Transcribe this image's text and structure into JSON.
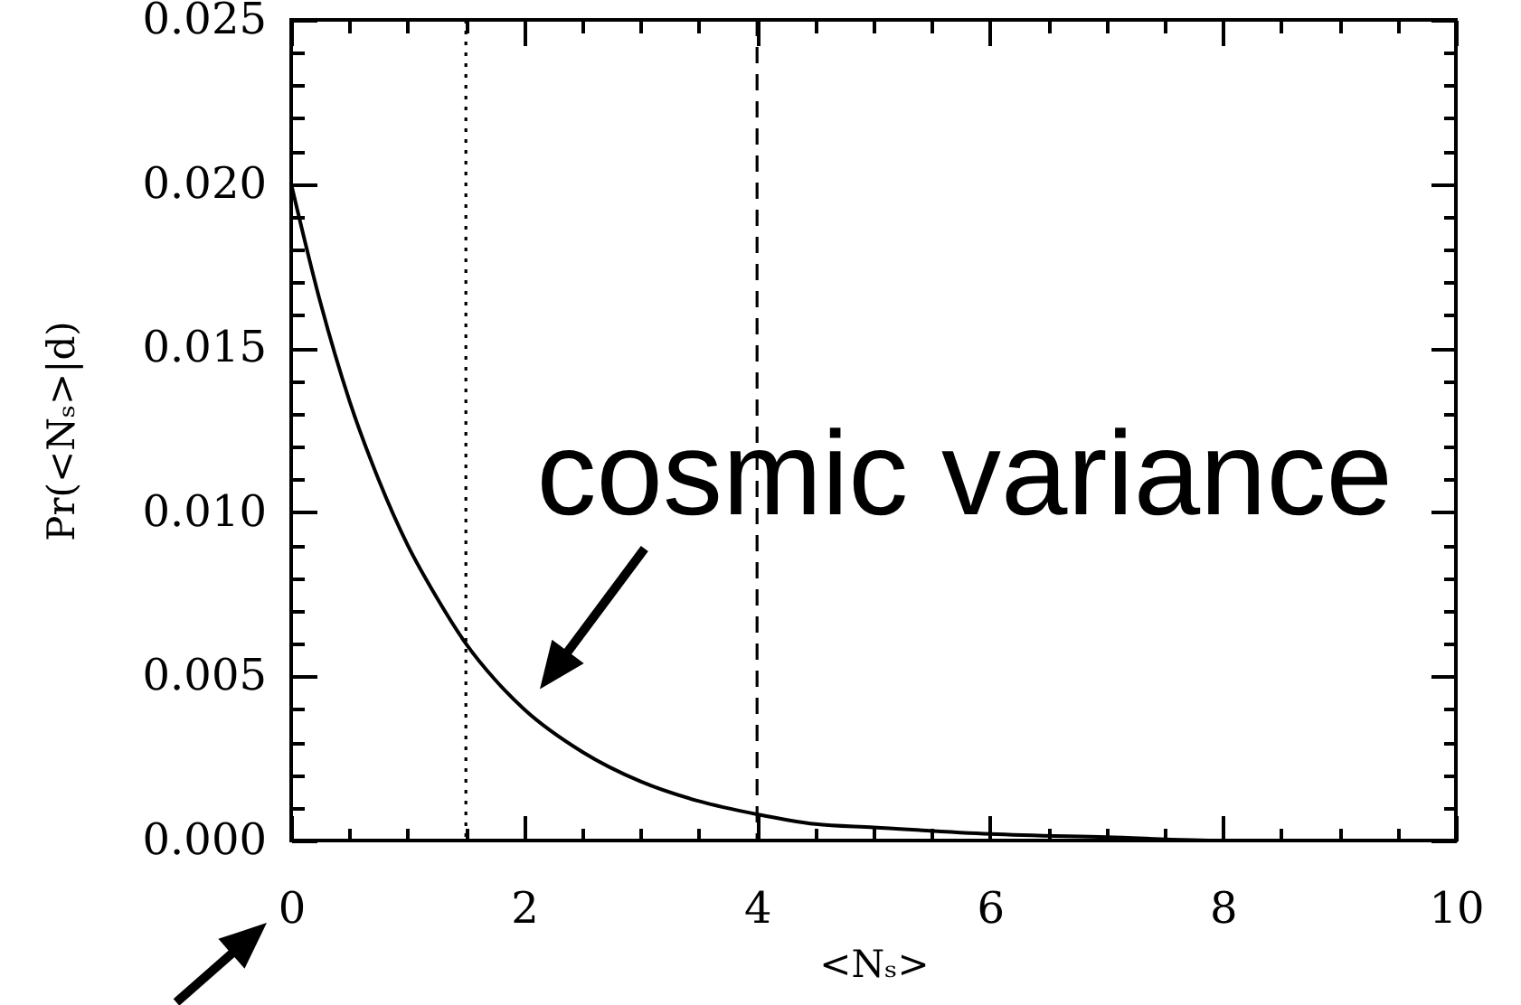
{
  "chart_data": {
    "type": "line",
    "xlabel": "<Nₛ>",
    "ylabel": "Pr(<Nₛ>|d)",
    "x": [
      0,
      0.25,
      0.5,
      0.75,
      1,
      1.25,
      1.5,
      1.75,
      2,
      2.5,
      3,
      3.5,
      4,
      4.5,
      5,
      6,
      7,
      8,
      9,
      10
    ],
    "series": [
      {
        "color": "#000000",
        "values": [
          0.02,
          0.0164,
          0.0134,
          0.011,
          0.009,
          0.0074,
          0.006,
          0.0049,
          0.004,
          0.0027,
          0.0018,
          0.0012,
          0.0008,
          0.0005,
          0.0004,
          0.0002,
          0.0001,
          0,
          0,
          0
        ]
      }
    ],
    "xlim": [
      0,
      10
    ],
    "ylim": [
      0,
      0.025
    ],
    "xticks": [
      0,
      {
        "value": 0.5,
        "label": null
      },
      {
        "value": 1,
        "label": null
      },
      {
        "value": 1.5,
        "label": null
      },
      2,
      {
        "value": 2.5,
        "label": null
      },
      {
        "value": 3,
        "label": null
      },
      {
        "value": 3.5,
        "label": null
      },
      4,
      {
        "value": 4.5,
        "label": null
      },
      {
        "value": 5,
        "label": null
      },
      {
        "value": 5.5,
        "label": null
      },
      6,
      {
        "value": 6.5,
        "label": null
      },
      {
        "value": 7,
        "label": null
      },
      {
        "value": 7.5,
        "label": null
      },
      8,
      {
        "value": 8.5,
        "label": null
      },
      {
        "value": 9,
        "label": null
      },
      {
        "value": 9.5,
        "label": null
      },
      10
    ],
    "yticks": [
      {
        "value": 0,
        "label": "0.000"
      },
      {
        "value": 0.001,
        "label": null
      },
      {
        "value": 0.002,
        "label": null
      },
      {
        "value": 0.003,
        "label": null
      },
      {
        "value": 0.004,
        "label": null
      },
      0.005,
      {
        "value": 0.006,
        "label": null
      },
      {
        "value": 0.007,
        "label": null
      },
      {
        "value": 0.008,
        "label": null
      },
      {
        "value": 0.009,
        "label": null
      },
      {
        "value": 0.01,
        "label": "0.010"
      },
      {
        "value": 0.011,
        "label": null
      },
      {
        "value": 0.012,
        "label": null
      },
      {
        "value": 0.013,
        "label": null
      },
      {
        "value": 0.014,
        "label": null
      },
      0.015,
      {
        "value": 0.016,
        "label": null
      },
      {
        "value": 0.017,
        "label": null
      },
      {
        "value": 0.018,
        "label": null
      },
      {
        "value": 0.019,
        "label": null
      },
      {
        "value": 0.02,
        "label": "0.020"
      },
      {
        "value": 0.021,
        "label": null
      },
      {
        "value": 0.022,
        "label": null
      },
      {
        "value": 0.023,
        "label": null
      },
      {
        "value": 0.024,
        "label": null
      },
      0.025
    ],
    "ref_lines": [
      {
        "axis": "x",
        "value": 1.5,
        "color": "#000000",
        "line_style": "dotted"
      },
      {
        "axis": "x",
        "value": 4,
        "color": "#000000",
        "line_style": "dashed"
      }
    ],
    "annotations": [
      {
        "text": "cosmic variance",
        "x": 2,
        "y": 0.004
      }
    ]
  }
}
